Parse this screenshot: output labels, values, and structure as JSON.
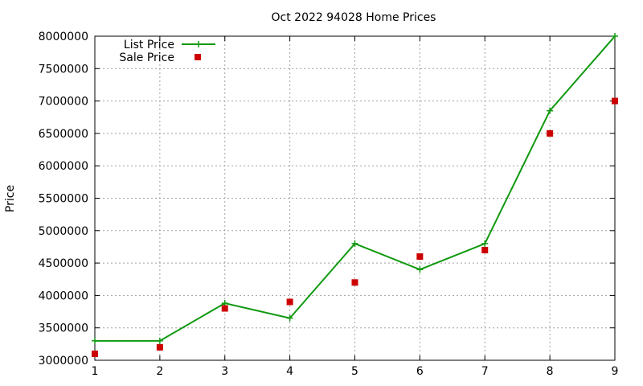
{
  "chart_data": {
    "type": "line",
    "title": "Oct 2022 94028 Home Prices",
    "xlabel": "",
    "ylabel": "Price",
    "x": [
      1,
      2,
      3,
      4,
      5,
      6,
      7,
      8,
      9
    ],
    "xlim": [
      1,
      9
    ],
    "ylim": [
      3000000,
      8000000
    ],
    "yticks": [
      3000000,
      3500000,
      4000000,
      4500000,
      5000000,
      5500000,
      6000000,
      6500000,
      7000000,
      7500000,
      8000000
    ],
    "grid": true,
    "legend_position": "top-left",
    "series": [
      {
        "name": "List Price",
        "style": "line-with-plus-markers",
        "color": "#119911",
        "values": [
          3300000,
          3300000,
          3880000,
          3650000,
          4800000,
          4400000,
          4800000,
          6850000,
          8000000
        ]
      },
      {
        "name": "Sale Price",
        "style": "square-markers",
        "color": "#cc0000",
        "values": [
          3100000,
          3200000,
          3800000,
          3900000,
          4200000,
          4600000,
          4700000,
          6500000,
          7000000
        ]
      }
    ]
  }
}
